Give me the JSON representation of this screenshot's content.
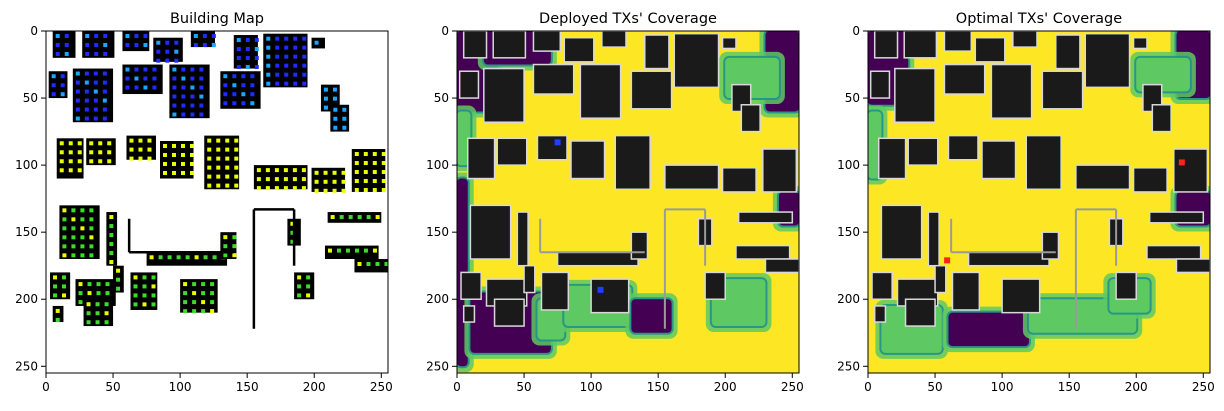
{
  "chart_data": [
    {
      "type": "heatmap",
      "title": "Building Map",
      "xlabel": "",
      "ylabel": "",
      "xlim": [
        0,
        255
      ],
      "ylim": [
        255,
        0
      ],
      "xticks": [
        0,
        50,
        100,
        150,
        200,
        250
      ],
      "yticks": [
        0,
        50,
        100,
        150,
        200,
        250
      ],
      "grid": false,
      "background": "#ffffff",
      "buildings": [
        {
          "x": 5,
          "y": 0,
          "w": 17,
          "h": 20
        },
        {
          "x": 27,
          "y": 0,
          "w": 24,
          "h": 20
        },
        {
          "x": 57,
          "y": 0,
          "w": 20,
          "h": 15
        },
        {
          "x": 80,
          "y": 5,
          "w": 22,
          "h": 18
        },
        {
          "x": 108,
          "y": 0,
          "w": 18,
          "h": 12
        },
        {
          "x": 140,
          "y": 3,
          "w": 18,
          "h": 25
        },
        {
          "x": 162,
          "y": 2,
          "w": 33,
          "h": 40
        },
        {
          "x": 198,
          "y": 5,
          "w": 10,
          "h": 8
        },
        {
          "x": 2,
          "y": 30,
          "w": 14,
          "h": 20
        },
        {
          "x": 20,
          "y": 28,
          "w": 30,
          "h": 40
        },
        {
          "x": 57,
          "y": 25,
          "w": 30,
          "h": 22
        },
        {
          "x": 92,
          "y": 25,
          "w": 30,
          "h": 40
        },
        {
          "x": 130,
          "y": 30,
          "w": 30,
          "h": 28
        },
        {
          "x": 205,
          "y": 40,
          "w": 14,
          "h": 20
        },
        {
          "x": 212,
          "y": 55,
          "w": 14,
          "h": 20
        },
        {
          "x": 8,
          "y": 80,
          "w": 20,
          "h": 30
        },
        {
          "x": 30,
          "y": 80,
          "w": 22,
          "h": 20
        },
        {
          "x": 60,
          "y": 78,
          "w": 22,
          "h": 18
        },
        {
          "x": 85,
          "y": 82,
          "w": 25,
          "h": 28
        },
        {
          "x": 118,
          "y": 78,
          "w": 26,
          "h": 40
        },
        {
          "x": 155,
          "y": 100,
          "w": 40,
          "h": 18
        },
        {
          "x": 198,
          "y": 102,
          "w": 25,
          "h": 18
        },
        {
          "x": 228,
          "y": 88,
          "w": 25,
          "h": 32
        },
        {
          "x": 10,
          "y": 130,
          "w": 30,
          "h": 40
        },
        {
          "x": 45,
          "y": 135,
          "w": 8,
          "h": 40
        },
        {
          "x": 3,
          "y": 180,
          "w": 15,
          "h": 20
        },
        {
          "x": 22,
          "y": 185,
          "w": 30,
          "h": 20
        },
        {
          "x": 50,
          "y": 175,
          "w": 8,
          "h": 20
        },
        {
          "x": 5,
          "y": 205,
          "w": 8,
          "h": 12
        },
        {
          "x": 28,
          "y": 200,
          "w": 22,
          "h": 20
        },
        {
          "x": 63,
          "y": 180,
          "w": 20,
          "h": 28
        },
        {
          "x": 100,
          "y": 185,
          "w": 28,
          "h": 25
        },
        {
          "x": 75,
          "y": 165,
          "w": 60,
          "h": 10
        },
        {
          "x": 130,
          "y": 150,
          "w": 12,
          "h": 20
        },
        {
          "x": 180,
          "y": 140,
          "w": 10,
          "h": 20
        },
        {
          "x": 210,
          "y": 135,
          "w": 40,
          "h": 8
        },
        {
          "x": 208,
          "y": 160,
          "w": 40,
          "h": 10
        },
        {
          "x": 185,
          "y": 180,
          "w": 15,
          "h": 20
        },
        {
          "x": 230,
          "y": 170,
          "w": 25,
          "h": 10
        }
      ],
      "lines": [
        {
          "x1": 155,
          "y1": 133,
          "x2": 185,
          "y2": 133
        },
        {
          "x1": 155,
          "y1": 133,
          "x2": 155,
          "y2": 222
        },
        {
          "x1": 185,
          "y1": 133,
          "x2": 185,
          "y2": 175
        },
        {
          "x1": 62,
          "y1": 165,
          "x2": 140,
          "y2": 165
        },
        {
          "x1": 62,
          "y1": 140,
          "x2": 62,
          "y2": 165
        }
      ]
    },
    {
      "type": "heatmap",
      "title": "Deployed TXs' Coverage",
      "xlabel": "",
      "ylabel": "",
      "xlim": [
        0,
        255
      ],
      "ylim": [
        255,
        0
      ],
      "xticks": [
        0,
        50,
        100,
        150,
        200,
        250
      ],
      "yticks": [
        0,
        50,
        100,
        150,
        200,
        250
      ],
      "grid": false,
      "background": "#fde725",
      "shadow_zones": [
        {
          "x": 0,
          "y": 0,
          "w": 30,
          "h": 60,
          "level": "low"
        },
        {
          "x": 20,
          "y": 0,
          "w": 50,
          "h": 25,
          "level": "low"
        },
        {
          "x": 230,
          "y": 0,
          "w": 25,
          "h": 60,
          "level": "low"
        },
        {
          "x": 200,
          "y": 20,
          "w": 40,
          "h": 30,
          "level": "mid"
        },
        {
          "x": 0,
          "y": 110,
          "w": 8,
          "h": 140,
          "level": "low"
        },
        {
          "x": 10,
          "y": 195,
          "w": 60,
          "h": 45,
          "level": "low"
        },
        {
          "x": 60,
          "y": 200,
          "w": 20,
          "h": 30,
          "level": "mid"
        },
        {
          "x": 80,
          "y": 190,
          "w": 50,
          "h": 30,
          "level": "mid"
        },
        {
          "x": 130,
          "y": 200,
          "w": 30,
          "h": 25,
          "level": "low"
        },
        {
          "x": 190,
          "y": 185,
          "w": 40,
          "h": 35,
          "level": "mid"
        },
        {
          "x": 0,
          "y": 60,
          "w": 10,
          "h": 40,
          "level": "mid"
        },
        {
          "x": 240,
          "y": 120,
          "w": 15,
          "h": 25,
          "level": "low"
        }
      ],
      "tx_points": [
        {
          "x": 107,
          "y": 193,
          "color": "#1f3fff"
        },
        {
          "x": 75,
          "y": 83,
          "color": "#1f3fff"
        }
      ]
    },
    {
      "type": "heatmap",
      "title": "Optimal TXs' Coverage",
      "xlabel": "",
      "ylabel": "",
      "xlim": [
        0,
        255
      ],
      "ylim": [
        255,
        0
      ],
      "xticks": [
        0,
        50,
        100,
        150,
        200,
        250
      ],
      "yticks": [
        0,
        50,
        100,
        150,
        200,
        250
      ],
      "grid": false,
      "background": "#fde725",
      "shadow_zones": [
        {
          "x": 0,
          "y": 0,
          "w": 30,
          "h": 55,
          "level": "low"
        },
        {
          "x": 230,
          "y": 0,
          "w": 25,
          "h": 50,
          "level": "low"
        },
        {
          "x": 200,
          "y": 20,
          "w": 40,
          "h": 25,
          "level": "mid"
        },
        {
          "x": 0,
          "y": 60,
          "w": 10,
          "h": 50,
          "level": "mid"
        },
        {
          "x": 10,
          "y": 205,
          "w": 45,
          "h": 35,
          "level": "mid"
        },
        {
          "x": 60,
          "y": 210,
          "w": 60,
          "h": 25,
          "level": "low"
        },
        {
          "x": 120,
          "y": 200,
          "w": 80,
          "h": 25,
          "level": "mid"
        },
        {
          "x": 180,
          "y": 185,
          "w": 30,
          "h": 25,
          "level": "mid"
        },
        {
          "x": 230,
          "y": 120,
          "w": 25,
          "h": 25,
          "level": "low"
        }
      ],
      "tx_points": [
        {
          "x": 59,
          "y": 171,
          "color": "#ff2020"
        },
        {
          "x": 234,
          "y": 98,
          "color": "#ff2020"
        }
      ]
    }
  ],
  "colors": {
    "viridis_low": "#440154",
    "viridis_low_mid": "#21918c",
    "viridis_mid": "#5ec962",
    "viridis_high": "#fde725",
    "building_dark": "#1a1a1a",
    "building_outline": "#d8d8d8",
    "marker_palette": [
      "#1f2bff",
      "#1aa7ff",
      "#3ddc2a",
      "#e9ff00"
    ]
  }
}
